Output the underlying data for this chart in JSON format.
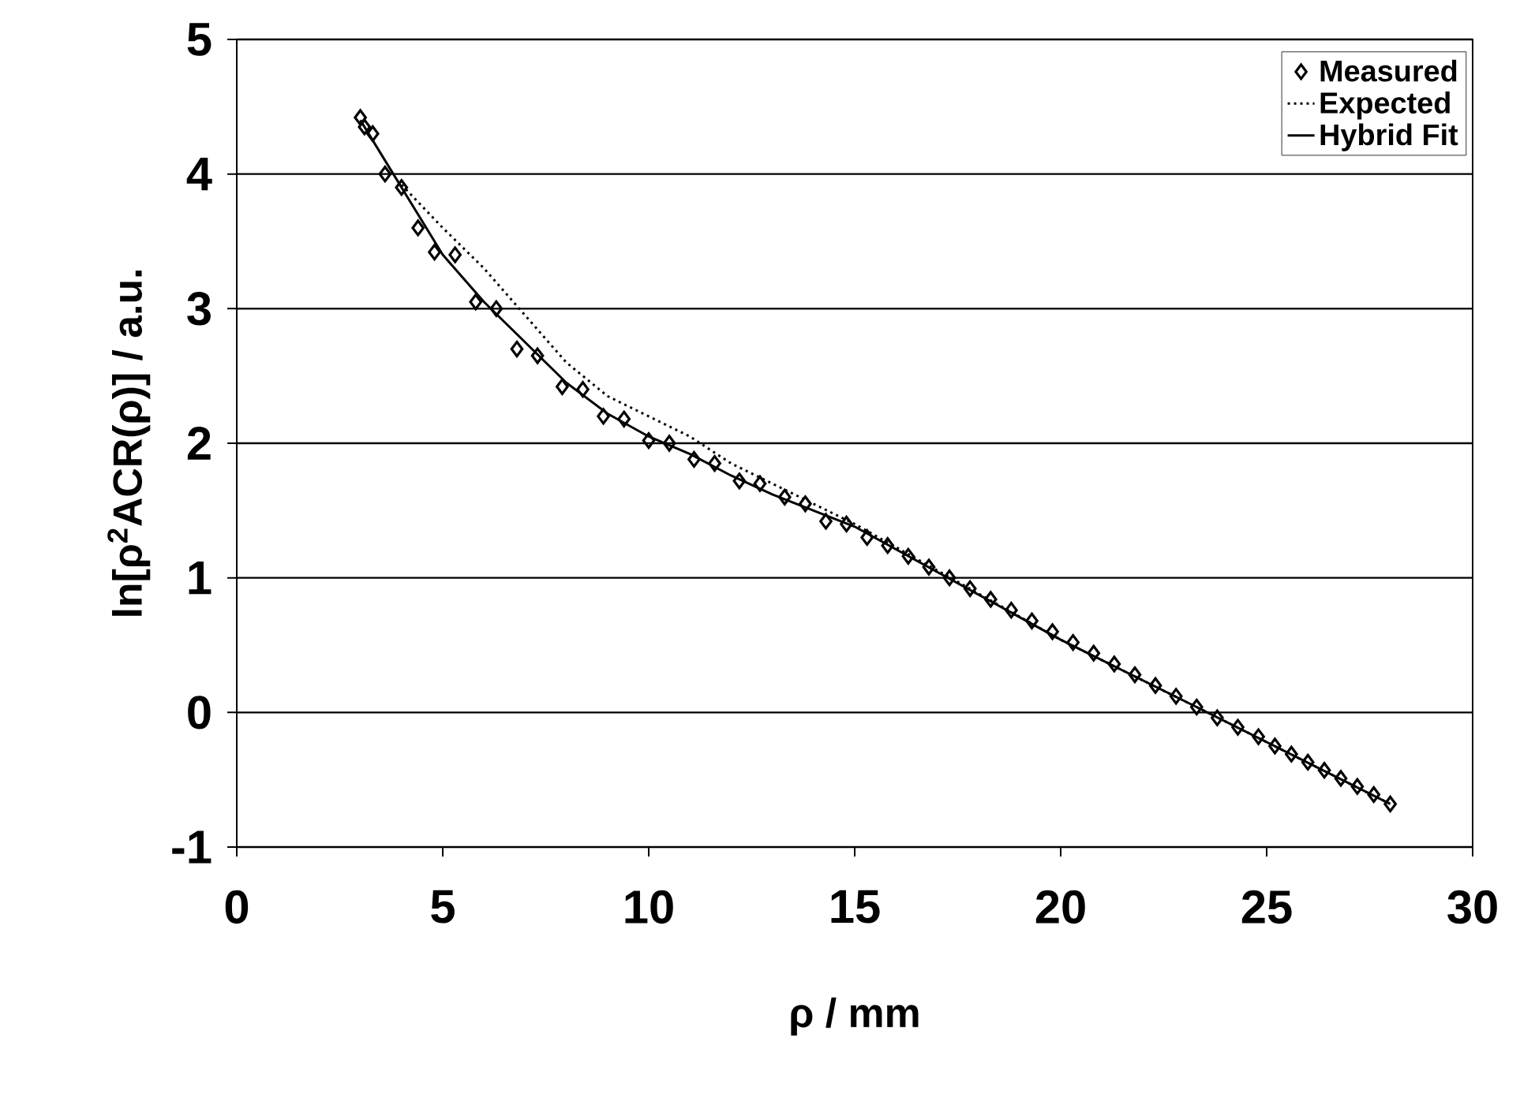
{
  "chart_data": {
    "type": "scatter",
    "xlabel": "ρ / mm",
    "ylabel": "ln[ρ$^{2}$ACR(ρ)] / a.u.",
    "xlim": [
      0,
      30
    ],
    "ylim": [
      -1,
      5
    ],
    "xticks": [
      0,
      5,
      10,
      15,
      20,
      25,
      30
    ],
    "yticks": [
      -1,
      0,
      1,
      2,
      3,
      4,
      5
    ],
    "grid": "y",
    "legend": "top right",
    "series": [
      {
        "name": "Measured",
        "marker": "diamond",
        "color": "#000000",
        "x": [
          3.0,
          3.1,
          3.3,
          3.6,
          4.0,
          4.4,
          4.8,
          5.3,
          5.8,
          6.3,
          6.8,
          7.3,
          7.9,
          8.4,
          8.9,
          9.4,
          10.0,
          10.5,
          11.1,
          11.6,
          12.2,
          12.7,
          13.3,
          13.8,
          14.3,
          14.8,
          15.3,
          15.8,
          16.3,
          16.8,
          17.3,
          17.8,
          18.3,
          18.8,
          19.3,
          19.8,
          20.3,
          20.8,
          21.3,
          21.8,
          22.3,
          22.8,
          23.3,
          23.8,
          24.3,
          24.8,
          25.2,
          25.6,
          26.0,
          26.4,
          26.8,
          27.2,
          27.6,
          28.0
        ],
        "values": [
          4.42,
          4.35,
          4.3,
          4.0,
          3.9,
          3.6,
          3.42,
          3.4,
          3.05,
          3.0,
          2.7,
          2.65,
          2.42,
          2.4,
          2.2,
          2.18,
          2.02,
          2.0,
          1.88,
          1.85,
          1.72,
          1.7,
          1.6,
          1.55,
          1.42,
          1.4,
          1.3,
          1.24,
          1.16,
          1.08,
          1.0,
          0.92,
          0.84,
          0.76,
          0.68,
          0.6,
          0.52,
          0.44,
          0.36,
          0.28,
          0.2,
          0.12,
          0.04,
          -0.04,
          -0.11,
          -0.18,
          -0.25,
          -0.31,
          -0.37,
          -0.43,
          -0.49,
          -0.55,
          -0.61,
          -0.68
        ]
      },
      {
        "name": "Expected",
        "type": "line",
        "line_style": "dotted",
        "color": "#000000",
        "x": [
          4.0,
          5,
          6,
          7,
          8,
          9,
          10,
          11,
          12,
          13,
          14,
          15,
          20,
          23.3,
          28
        ],
        "values": [
          3.92,
          3.6,
          3.3,
          2.95,
          2.6,
          2.35,
          2.2,
          2.05,
          1.85,
          1.7,
          1.55,
          1.4,
          0.54,
          0.04,
          -0.68
        ]
      },
      {
        "name": "Hybrid Fit",
        "type": "line",
        "line_style": "solid",
        "color": "#000000",
        "x": [
          3.0,
          4,
          5,
          6,
          7,
          8,
          9,
          10,
          11,
          12,
          13,
          14,
          15,
          20,
          23.3,
          28
        ],
        "values": [
          4.4,
          3.9,
          3.4,
          3.05,
          2.75,
          2.45,
          2.22,
          2.05,
          1.92,
          1.76,
          1.62,
          1.5,
          1.38,
          0.54,
          0.04,
          -0.68
        ]
      }
    ]
  }
}
